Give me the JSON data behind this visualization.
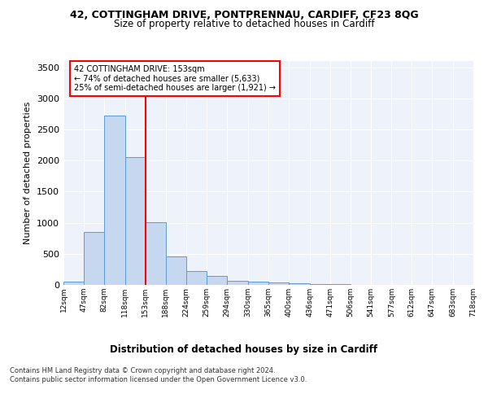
{
  "title_line1": "42, COTTINGHAM DRIVE, PONTPRENNAU, CARDIFF, CF23 8QG",
  "title_line2": "Size of property relative to detached houses in Cardiff",
  "xlabel": "Distribution of detached houses by size in Cardiff",
  "ylabel": "Number of detached properties",
  "bar_edges": [
    12,
    47,
    82,
    118,
    153,
    188,
    224,
    259,
    294,
    330,
    365,
    400,
    436,
    471,
    506,
    541,
    577,
    612,
    647,
    683,
    718
  ],
  "bar_heights": [
    55,
    855,
    2720,
    2060,
    1010,
    455,
    225,
    140,
    65,
    50,
    35,
    25,
    10,
    8,
    5,
    3,
    2,
    2,
    1,
    1
  ],
  "bar_color": "#c5d8f0",
  "bar_edge_color": "#5b9bd5",
  "vline_x": 153,
  "vline_color": "red",
  "annotation_text": "42 COTTINGHAM DRIVE: 153sqm\n← 74% of detached houses are smaller (5,633)\n25% of semi-detached houses are larger (1,921) →",
  "annotation_box_color": "white",
  "annotation_box_edge": "red",
  "ylim": [
    0,
    3600
  ],
  "yticks": [
    0,
    500,
    1000,
    1500,
    2000,
    2500,
    3000,
    3500
  ],
  "footer_line1": "Contains HM Land Registry data © Crown copyright and database right 2024.",
  "footer_line2": "Contains public sector information licensed under the Open Government Licence v3.0.",
  "plot_bg_color": "#edf2fb"
}
